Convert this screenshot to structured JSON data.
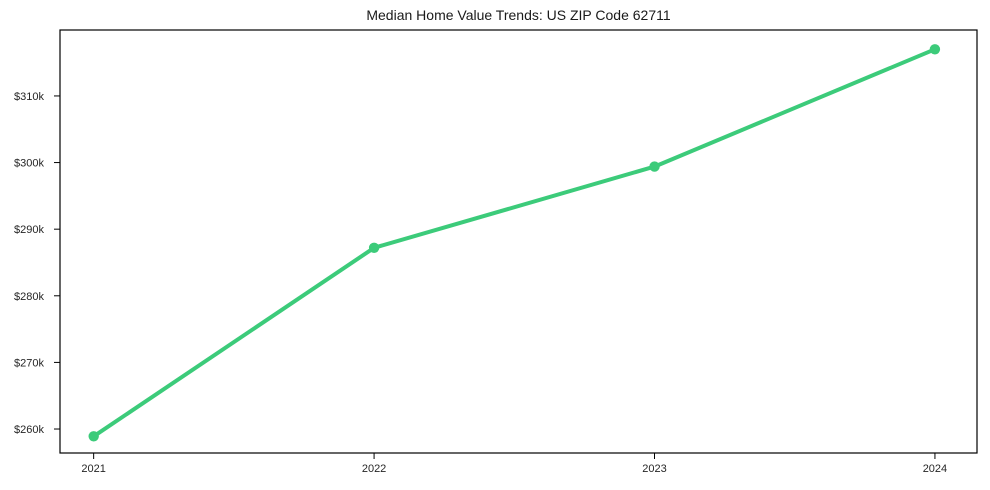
{
  "chart_data": {
    "type": "line",
    "title": "Median Home Value Trends: US ZIP Code 62711",
    "x": [
      2021,
      2022,
      2023,
      2024
    ],
    "xtick_labels": [
      "2021",
      "2022",
      "2023",
      "2024"
    ],
    "series": [
      {
        "name": "Median Home Value",
        "values": [
          258.9,
          287.2,
          299.4,
          317.0
        ],
        "unit": "USD thousands"
      }
    ],
    "yticks": [
      260,
      270,
      280,
      290,
      300,
      310
    ],
    "ytick_labels": [
      "$260k",
      "$270k",
      "$280k",
      "$290k",
      "$300k",
      "$310k"
    ],
    "xlim": [
      2020.88,
      2024.15
    ],
    "ylim": [
      256.4,
      319.9
    ],
    "xlabel": "",
    "ylabel": "",
    "grid": false,
    "legend": false,
    "marker": "circle",
    "colors": {
      "line": "#3ccb7a",
      "marker": "#3ccb7a",
      "axis": "#000000",
      "tick_labels": "#262626",
      "title": "#1a1a1a",
      "background": "#ffffff"
    }
  }
}
